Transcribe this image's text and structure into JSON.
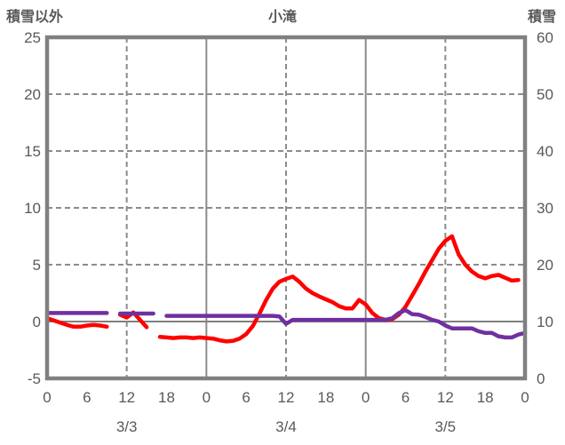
{
  "header": {
    "left_axis_title": "積雪以外",
    "chart_title": "小滝",
    "right_axis_title": "積雪"
  },
  "colors": {
    "red_series": "#FF0000",
    "purple_series": "#7030A0",
    "border_gray": "#808080",
    "grid_gray": "#8C8C8C",
    "zero_line_gray": "#808080",
    "text_gray": "#595959",
    "background": "#FFFFFF"
  },
  "chart_data": {
    "type": "line",
    "title": "小滝",
    "grid": true,
    "legend": "none",
    "x_hours_range": [
      0,
      72
    ],
    "x_tick_hours": [
      0,
      6,
      12,
      18,
      24,
      30,
      36,
      42,
      48,
      54,
      60,
      66,
      72
    ],
    "x_tick_labels": [
      "0",
      "6",
      "12",
      "18",
      "0",
      "6",
      "12",
      "18",
      "0",
      "6",
      "12",
      "18",
      "0"
    ],
    "date_labels": [
      {
        "label": "3/3",
        "hour": 12
      },
      {
        "label": "3/4",
        "hour": 36
      },
      {
        "label": "3/5",
        "hour": 60
      }
    ],
    "left_axis": {
      "title": "積雪以外",
      "min": -5,
      "max": 25,
      "tick_step": 5,
      "tick_labels": [
        "25",
        "20",
        "15",
        "10",
        "5",
        "0",
        "-5"
      ],
      "tick_values": [
        25,
        20,
        15,
        10,
        5,
        0,
        -5
      ]
    },
    "right_axis": {
      "title": "積雪",
      "min": 0,
      "max": 60,
      "tick_step": 10,
      "tick_labels": [
        "60",
        "50",
        "40",
        "30",
        "20",
        "10",
        "0"
      ],
      "tick_values": [
        60,
        50,
        40,
        30,
        20,
        10,
        0
      ]
    },
    "gridlines": {
      "horizontal_dashed_left_values": [
        20,
        15,
        10,
        5
      ],
      "zero_line_left_value": 0,
      "vertical_dashed_hours": [
        12,
        36,
        60
      ],
      "vertical_solid_hours": [
        24,
        48
      ]
    },
    "series": [
      {
        "name": "積雪以外",
        "axis": "left",
        "color": "#FF0000",
        "x_step_hours": 1,
        "values": [
          0.3,
          0.1,
          -0.1,
          -0.3,
          -0.45,
          -0.45,
          -0.35,
          -0.3,
          -0.35,
          -0.45,
          null,
          0.6,
          0.35,
          0.8,
          0.15,
          -0.5,
          null,
          -1.35,
          -1.4,
          -1.45,
          -1.4,
          -1.4,
          -1.45,
          -1.4,
          -1.45,
          -1.5,
          -1.65,
          -1.75,
          -1.7,
          -1.5,
          -1.1,
          -0.4,
          0.7,
          1.9,
          2.9,
          3.5,
          3.75,
          3.95,
          3.5,
          2.9,
          2.5,
          2.2,
          1.95,
          1.7,
          1.35,
          1.15,
          1.15,
          1.9,
          1.5,
          0.75,
          0.3,
          0.15,
          0.2,
          0.6,
          1.3,
          2.3,
          3.3,
          4.4,
          5.4,
          6.4,
          7.1,
          7.5,
          5.9,
          5.0,
          4.4,
          4.0,
          3.8,
          4.0,
          4.1,
          3.85,
          3.6,
          3.65,
          null
        ]
      },
      {
        "name": "積雪",
        "axis": "right",
        "color": "#7030A0",
        "x_step_hours": 1,
        "values": [
          11.5,
          11.5,
          11.5,
          11.5,
          11.5,
          11.5,
          11.5,
          11.5,
          11.5,
          11.5,
          null,
          11.4,
          11.4,
          11.4,
          11.4,
          11.4,
          11.4,
          null,
          11.0,
          11.0,
          11.0,
          11.0,
          11.0,
          11.0,
          11.0,
          11.0,
          11.0,
          11.0,
          11.0,
          11.0,
          11.0,
          11.0,
          11.0,
          11.0,
          11.0,
          10.9,
          9.6,
          10.3,
          10.3,
          10.3,
          10.3,
          10.3,
          10.3,
          10.3,
          10.3,
          10.3,
          10.3,
          10.3,
          10.3,
          10.3,
          10.3,
          10.3,
          10.6,
          11.5,
          12.0,
          11.3,
          11.2,
          10.8,
          10.3,
          10.0,
          9.3,
          8.8,
          8.8,
          8.8,
          8.8,
          8.3,
          8.0,
          8.0,
          7.4,
          7.2,
          7.2,
          7.7,
          8.0
        ]
      }
    ]
  }
}
